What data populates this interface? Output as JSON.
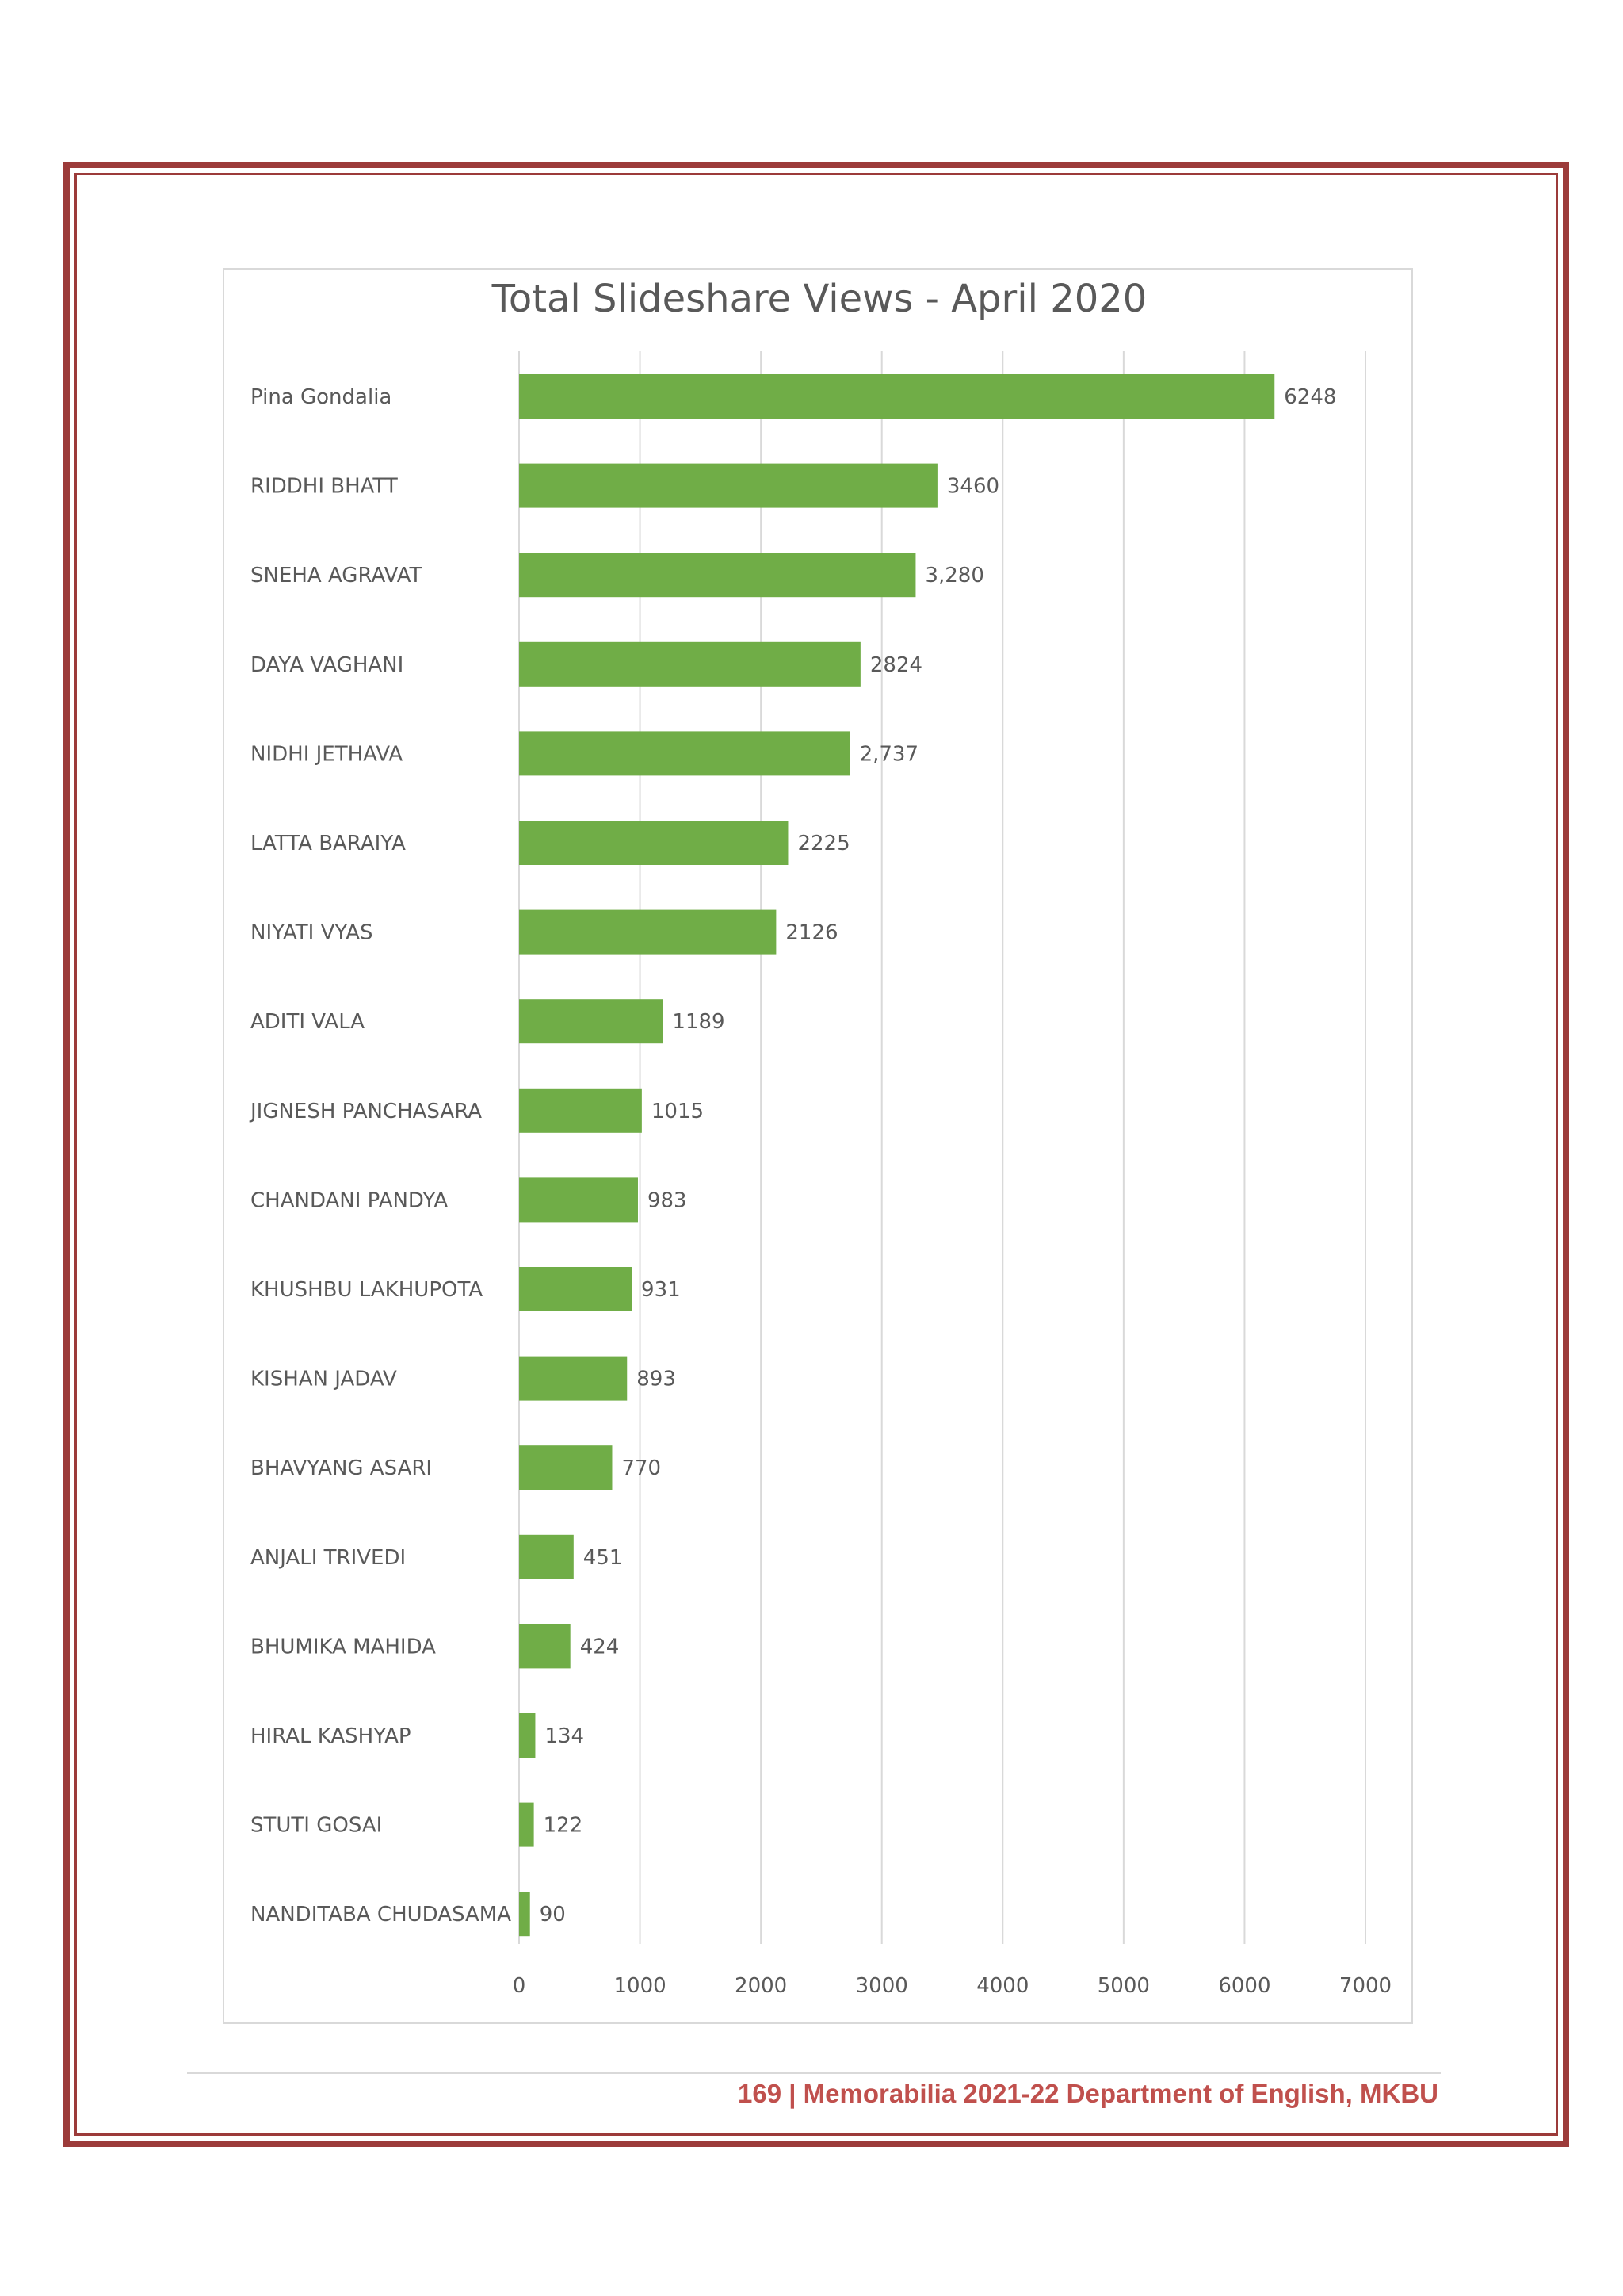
{
  "chart_data": {
    "type": "bar",
    "orientation": "horizontal",
    "title": "Total Slideshare Views - April 2020",
    "xlabel": "",
    "ylabel": "",
    "xlim": [
      0,
      7000
    ],
    "x_ticks": [
      0,
      1000,
      2000,
      3000,
      4000,
      5000,
      6000,
      7000
    ],
    "grid": true,
    "legend": "none",
    "bar_color": "#70ad47",
    "categories": [
      "Pina Gondalia",
      "RIDDHI BHATT",
      "SNEHA AGRAVAT",
      "DAYA VAGHANI",
      "NIDHI JETHAVA",
      "LATTA BARAIYA",
      "NIYATI VYAS",
      "ADITI VALA",
      "JIGNESH PANCHASARA",
      "CHANDANI PANDYA",
      "KHUSHBU LAKHUPOTA",
      "KISHAN JADAV",
      "BHAVYANG ASARI",
      "ANJALI TRIVEDI",
      "BHUMIKA MAHIDA",
      "HIRAL KASHYAP",
      "STUTI GOSAI",
      "NANDITABA CHUDASAMA"
    ],
    "values": [
      6248,
      3460,
      3280,
      2824,
      2737,
      2225,
      2126,
      1189,
      1015,
      983,
      931,
      893,
      770,
      451,
      424,
      134,
      122,
      90
    ],
    "data_labels": [
      "6248",
      "3460",
      "3,280",
      "2824",
      "2,737",
      "2225",
      "2126",
      "1189",
      "1015",
      "983",
      "931",
      "893",
      "770",
      "451",
      "424",
      "134",
      "122",
      "90"
    ]
  },
  "footer": {
    "text": "169 | Memorabilia 2021-22 Department of English, MKBU",
    "color": "#c0504d"
  },
  "frame_color": "#9c3b3a"
}
